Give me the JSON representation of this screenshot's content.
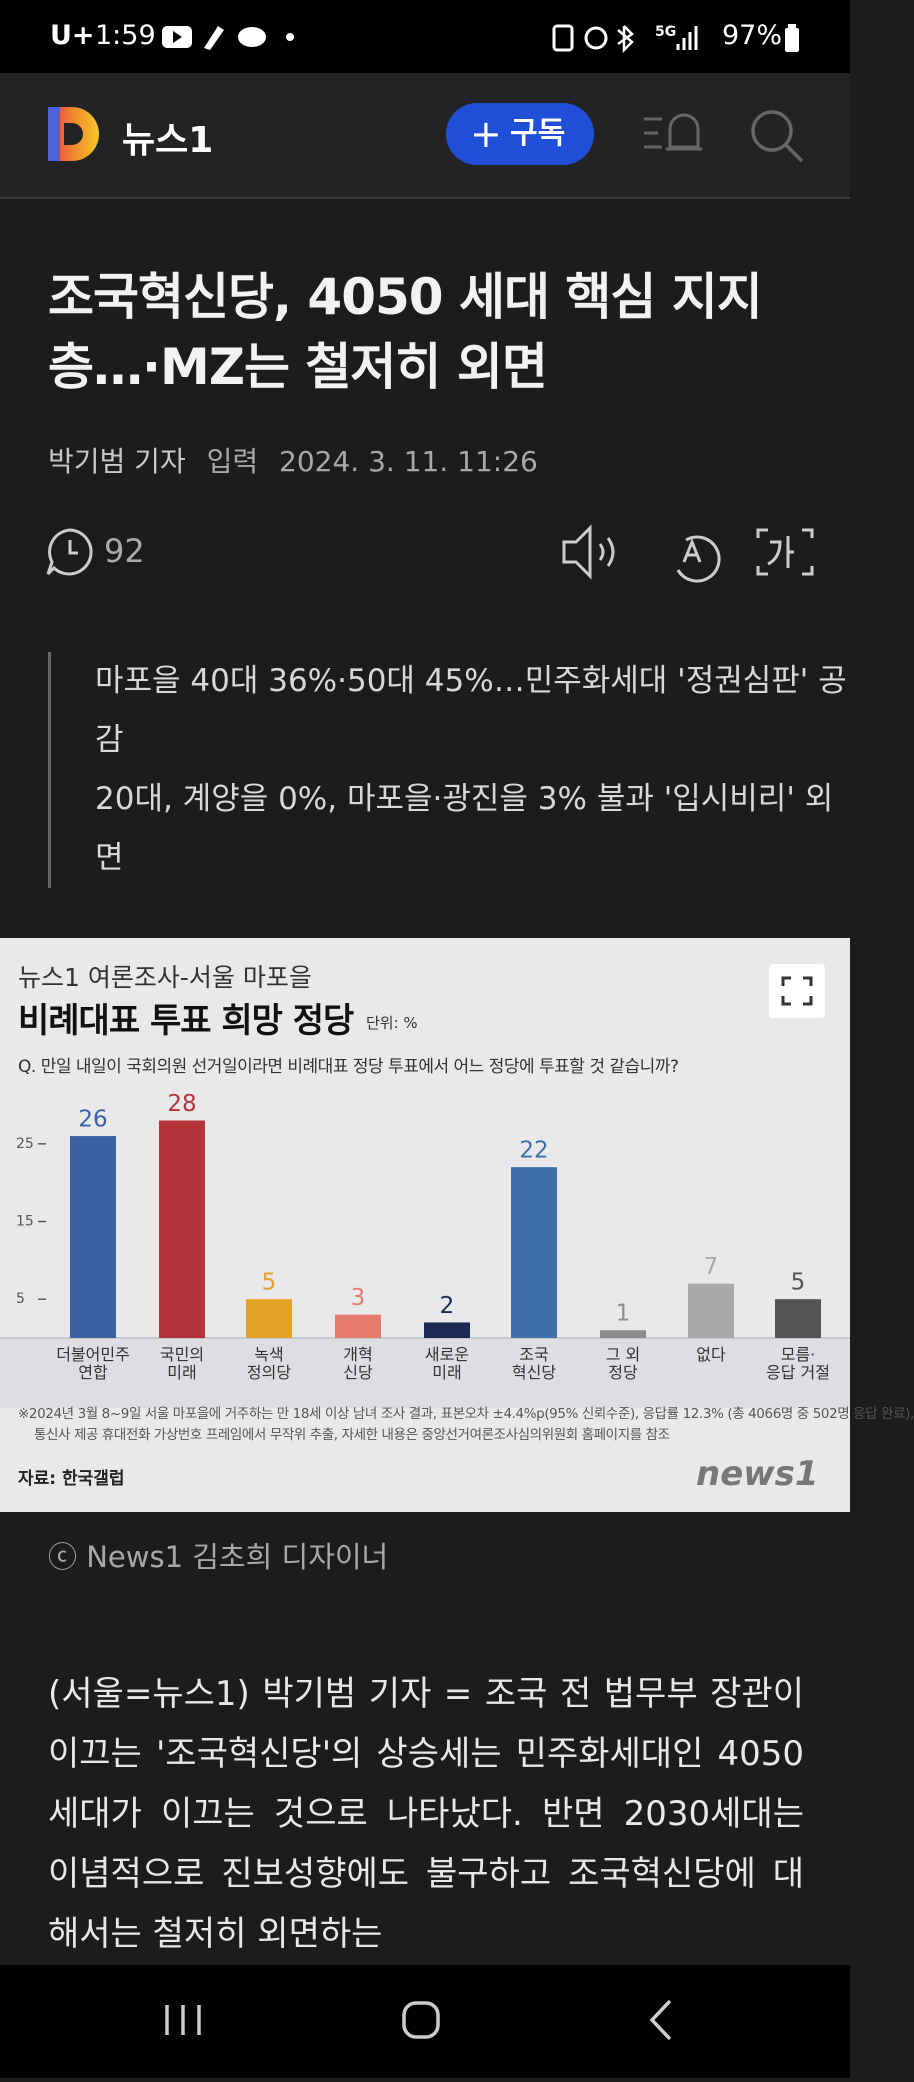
{
  "status_bar": {
    "carrier": "U+",
    "time": "1:59",
    "network": "5G",
    "battery": "97%"
  },
  "header": {
    "logo": "뉴스1",
    "subscribe": "구독"
  },
  "article": {
    "title": "조국혁신당, 4050 세대 핵심 지지층…·MZ는 철저히 외면",
    "author": "박기범 기자",
    "input_label": "입력",
    "date": "2024. 3. 11. 11:26",
    "comments": "92",
    "summary": [
      "마포을 40대 36%·50대 45%…민주화세대 '정권심판' 공감",
      "20대, 계양을 0%, 마포을·광진을 3% 불과 '입시비리' 외면"
    ],
    "caption": "ⓒ News1 김초희 디자이너",
    "body": "(서울=뉴스1) 박기범 기자 = 조국 전 법무부 장관이 이끄는 '조국혁신당'의 상승세는 민주화세대인 4050세대가 이끄는 것으로 나타났다. 반면 2030세대는 이념적으로 진보성향에도 불구하고 조국혁신당에 대해서는 철저히 외면하는"
  },
  "chart_data": {
    "type": "bar",
    "subtitle": "뉴스1 여론조사-서울 마포을",
    "title": "비례대표 투표 희망 정당",
    "unit": "단위: %",
    "question": "Q. 만일 내일이 국회의원 선거일이라면 비례대표 정당 투표에서 어느 정당에 투표할 것 같습니까?",
    "categories": [
      "더불어민주\n연합",
      "국민의\n미래",
      "녹색\n정의당",
      "개혁\n신당",
      "새로운\n미래",
      "조국\n혁신당",
      "그 외\n정당",
      "없다",
      "모름·\n응답 거절"
    ],
    "values": [
      26,
      28,
      5,
      3,
      2,
      22,
      1,
      7,
      5
    ],
    "colors": [
      "#3a63a3",
      "#b5343a",
      "#e2a225",
      "#e37a6c",
      "#1b2a55",
      "#3f70ac",
      "#8c8c8c",
      "#a9a9a9",
      "#555555"
    ],
    "ylim": [
      0,
      30
    ],
    "yticks": [
      5,
      15,
      25
    ],
    "grid": false,
    "notes": [
      "※2024년 3월 8~9일 서울 마포을에 거주하는 만 18세 이상 남녀 조사 결과, 표본오차 ±4.4%p(95% 신뢰수준), 응답률 12.3% (총 4066명 중 502명 응답 완료),",
      "통신사 제공 휴대전화 가상번호 프레임에서 무작위 추출, 자세한 내용은 중앙선거여론조사심의위원회 홈페이지를 참조"
    ],
    "source": "자료: 한국갤럽",
    "brand": "news1"
  }
}
